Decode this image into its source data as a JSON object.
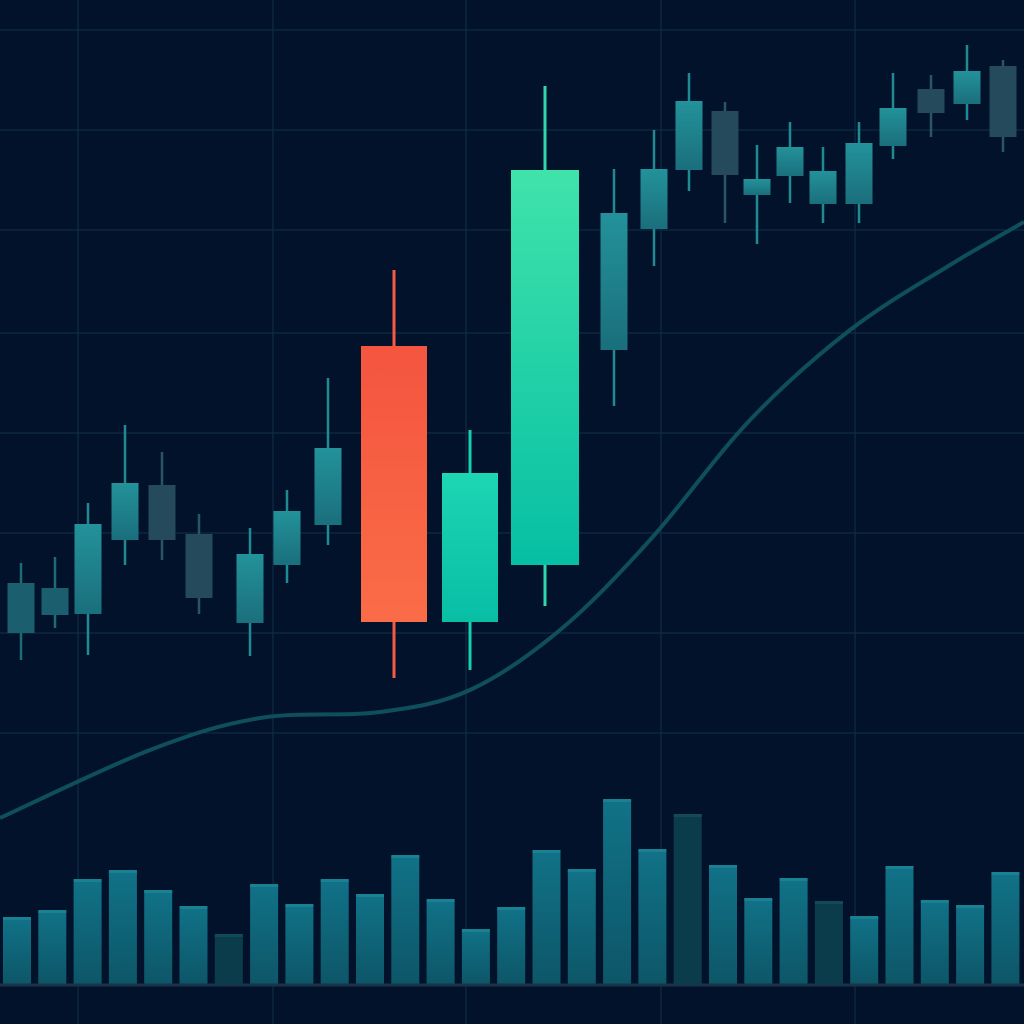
{
  "chart_data": {
    "type": "candlestick",
    "title": "",
    "xlabel": "",
    "ylabel": "",
    "xlim": [
      0,
      102.4
    ],
    "ylim": [
      0,
      100
    ],
    "grid": true,
    "grid_x": [
      7.8,
      27.3,
      46.6,
      66.1,
      85.5
    ],
    "grid_y": [
      97,
      87,
      77,
      66.7,
      56.7,
      46.7,
      36.7,
      26.7
    ],
    "colors": {
      "background": "#02122a",
      "grid": "#13304a",
      "teal": "#1d7f88",
      "dim": "#1b5f6e",
      "slate": "#244a5c",
      "red": "#f65a42",
      "green": "#14cbb0",
      "bright": "#30dba8",
      "ma": "#0f4f5c",
      "volume": "#0f6577",
      "volume_dark": "#0b3c4b"
    },
    "candles": [
      {
        "t": 2.1,
        "high": 43.7,
        "body_top": 41.7,
        "body_bottom": 36.7,
        "low": 34.0,
        "tone": "dim"
      },
      {
        "t": 5.5,
        "high": 44.3,
        "body_top": 41.2,
        "body_bottom": 38.5,
        "low": 37.2,
        "tone": "dim"
      },
      {
        "t": 8.8,
        "high": 49.7,
        "body_top": 47.6,
        "body_bottom": 38.6,
        "low": 34.5,
        "tone": "teal"
      },
      {
        "t": 12.5,
        "high": 57.5,
        "body_top": 51.7,
        "body_bottom": 46.0,
        "low": 43.5,
        "tone": "teal"
      },
      {
        "t": 16.2,
        "high": 54.8,
        "body_top": 51.5,
        "body_bottom": 46.0,
        "low": 44.0,
        "tone": "slate"
      },
      {
        "t": 19.9,
        "high": 48.6,
        "body_top": 46.6,
        "body_bottom": 40.2,
        "low": 38.6,
        "tone": "slate"
      },
      {
        "t": 25.0,
        "high": 47.2,
        "body_top": 44.6,
        "body_bottom": 37.7,
        "low": 34.4,
        "tone": "teal"
      },
      {
        "t": 28.7,
        "high": 51.0,
        "body_top": 48.9,
        "body_bottom": 43.5,
        "low": 41.7,
        "tone": "teal"
      },
      {
        "t": 32.8,
        "high": 62.2,
        "body_top": 55.2,
        "body_bottom": 47.5,
        "low": 45.5,
        "tone": "teal"
      },
      {
        "t": 39.4,
        "high": 73.0,
        "body_top": 65.4,
        "body_bottom": 37.8,
        "low": 32.2,
        "tone": "red"
      },
      {
        "t": 47.0,
        "high": 57.0,
        "body_top": 52.7,
        "body_bottom": 37.8,
        "low": 33.0,
        "tone": "green"
      },
      {
        "t": 54.5,
        "high": 91.4,
        "body_top": 83.0,
        "body_bottom": 43.5,
        "low": 39.4,
        "tone": "bright"
      },
      {
        "t": 61.4,
        "high": 83.1,
        "body_top": 78.7,
        "body_bottom": 65.0,
        "low": 59.4,
        "tone": "teal"
      },
      {
        "t": 65.4,
        "high": 87.0,
        "body_top": 83.1,
        "body_bottom": 77.1,
        "low": 73.4,
        "tone": "teal"
      },
      {
        "t": 68.9,
        "high": 92.7,
        "body_top": 89.9,
        "body_bottom": 83.0,
        "low": 80.9,
        "tone": "teal"
      },
      {
        "t": 72.5,
        "high": 89.8,
        "body_top": 88.9,
        "body_bottom": 82.5,
        "low": 77.7,
        "tone": "slate"
      },
      {
        "t": 75.7,
        "high": 85.5,
        "body_top": 82.1,
        "body_bottom": 80.5,
        "low": 75.6,
        "tone": "teal"
      },
      {
        "t": 79.0,
        "high": 87.8,
        "body_top": 85.3,
        "body_bottom": 82.4,
        "low": 79.7,
        "tone": "teal"
      },
      {
        "t": 82.3,
        "high": 85.3,
        "body_top": 82.9,
        "body_bottom": 79.6,
        "low": 77.7,
        "tone": "teal"
      },
      {
        "t": 85.9,
        "high": 87.8,
        "body_top": 85.7,
        "body_bottom": 79.6,
        "low": 77.7,
        "tone": "teal"
      },
      {
        "t": 89.3,
        "high": 92.7,
        "body_top": 89.2,
        "body_bottom": 85.4,
        "low": 84.1,
        "tone": "teal"
      },
      {
        "t": 93.1,
        "high": 92.5,
        "body_top": 91.1,
        "body_bottom": 88.7,
        "low": 86.3,
        "tone": "slate"
      },
      {
        "t": 96.7,
        "high": 95.5,
        "body_top": 92.9,
        "body_bottom": 89.6,
        "low": 88.0,
        "tone": "teal"
      },
      {
        "t": 100.3,
        "high": 94.0,
        "body_top": 93.4,
        "body_bottom": 86.3,
        "low": 84.8,
        "tone": "slate"
      }
    ],
    "moving_average": [
      [
        0,
        18.2
      ],
      [
        15,
        25
      ],
      [
        26,
        28.2
      ],
      [
        38,
        28.8
      ],
      [
        47,
        31
      ],
      [
        56,
        37
      ],
      [
        65,
        46
      ],
      [
        75,
        58
      ],
      [
        85,
        67
      ],
      [
        95,
        73.5
      ],
      [
        102.4,
        77.8
      ]
    ],
    "volume": {
      "t_start": 1.7,
      "t_step": 3.53,
      "values": [
        6.6,
        7.3,
        10.4,
        11.3,
        9.3,
        7.7,
        4.9,
        9.9,
        7.9,
        10.4,
        8.9,
        12.8,
        8.4,
        5.4,
        7.6,
        13.3,
        11.4,
        18.4,
        13.4,
        16.9,
        11.8,
        8.5,
        10.5,
        8.2,
        6.7,
        11.7,
        8.3,
        7.8,
        11.1
      ],
      "dark": [
        6,
        19,
        23
      ]
    }
  }
}
